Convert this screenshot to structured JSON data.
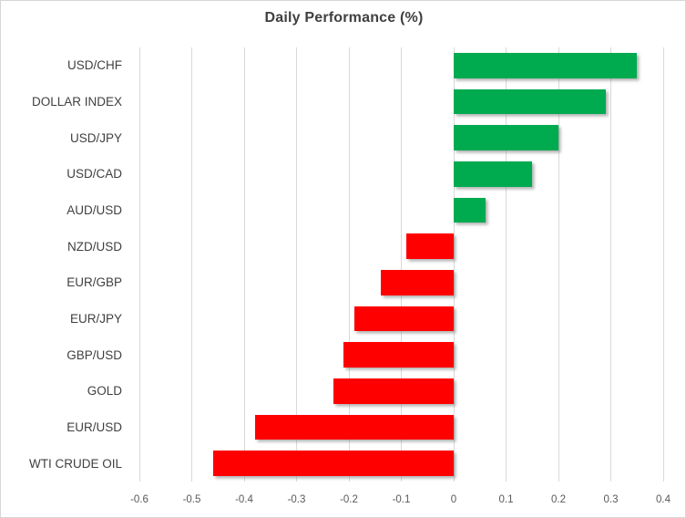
{
  "chart_data": {
    "type": "bar",
    "orientation": "horizontal",
    "title": "Daily Performance (%)",
    "categories": [
      "USD/CHF",
      "DOLLAR INDEX",
      "USD/JPY",
      "USD/CAD",
      "AUD/USD",
      "NZD/USD",
      "EUR/GBP",
      "EUR/JPY",
      "GBP/USD",
      "GOLD",
      "EUR/USD",
      "WTI CRUDE OIL"
    ],
    "values": [
      0.35,
      0.29,
      0.2,
      0.15,
      0.06,
      -0.09,
      -0.14,
      -0.19,
      -0.21,
      -0.23,
      -0.38,
      -0.46
    ],
    "xlabel": "",
    "ylabel": "",
    "xlim": [
      -0.6,
      0.4
    ],
    "x_ticks": [
      -0.6,
      -0.5,
      -0.4,
      -0.3,
      -0.2,
      -0.1,
      0,
      0.1,
      0.2,
      0.3,
      0.4
    ],
    "x_tick_labels": [
      "-0.6",
      "-0.5",
      "-0.4",
      "-0.3",
      "-0.2",
      "-0.1",
      "0",
      "0.1",
      "0.2",
      "0.3",
      "0.4"
    ],
    "grid": true,
    "legend": false,
    "colors": {
      "positive_bar": "#00ab50",
      "negative_bar": "#ff0000",
      "gridline": "#d9d9d9",
      "title_text": "#404040",
      "category_text": "#404040",
      "tick_text": "#595959",
      "background": "#ffffff"
    }
  }
}
